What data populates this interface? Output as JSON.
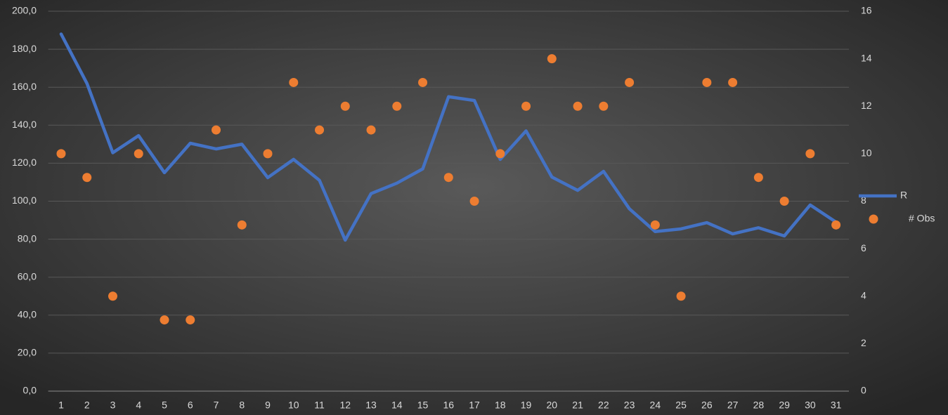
{
  "chart_data": {
    "type": "combo",
    "categories": [
      "1",
      "2",
      "3",
      "4",
      "5",
      "6",
      "7",
      "8",
      "9",
      "10",
      "11",
      "12",
      "13",
      "14",
      "15",
      "16",
      "17",
      "18",
      "19",
      "20",
      "21",
      "22",
      "23",
      "24",
      "25",
      "26",
      "27",
      "28",
      "29",
      "30",
      "31"
    ],
    "series": [
      {
        "name": "R",
        "type": "line",
        "color": "#4472c4",
        "axis": "y",
        "values": [
          188,
          162,
          125.5,
          134.5,
          115,
          130.5,
          127.5,
          130,
          112.4,
          122,
          111,
          79.5,
          104,
          109.5,
          117,
          155,
          153,
          122,
          137,
          112.7,
          105.7,
          115.7,
          96,
          84,
          85.4,
          88.7,
          82.8,
          86,
          81.7,
          98,
          89
        ]
      },
      {
        "name": "# Obs",
        "type": "scatter",
        "color": "#ed7d31",
        "axis": "y2",
        "values": [
          10,
          9,
          4,
          10,
          3,
          3,
          11,
          7,
          10,
          13,
          11,
          12,
          11,
          12,
          13,
          9,
          8,
          10,
          12,
          14,
          12,
          12,
          13,
          7,
          4,
          13,
          13,
          9,
          8,
          10,
          7
        ]
      }
    ],
    "ylim": [
      0,
      200
    ],
    "yticks": [
      {
        "value": 0,
        "label": "0,0"
      },
      {
        "value": 20,
        "label": "20,0"
      },
      {
        "value": 40,
        "label": "40,0"
      },
      {
        "value": 60,
        "label": "60,0"
      },
      {
        "value": 80,
        "label": "80,0"
      },
      {
        "value": 100,
        "label": "100,0"
      },
      {
        "value": 120,
        "label": "120,0"
      },
      {
        "value": 140,
        "label": "140,0"
      },
      {
        "value": 160,
        "label": "160,0"
      },
      {
        "value": 180,
        "label": "180,0"
      },
      {
        "value": 200,
        "label": "200,0"
      }
    ],
    "y2lim": [
      0,
      16
    ],
    "y2ticks": [
      0,
      2,
      4,
      6,
      8,
      10,
      12,
      14,
      16
    ],
    "grid": true,
    "legend": "right"
  }
}
